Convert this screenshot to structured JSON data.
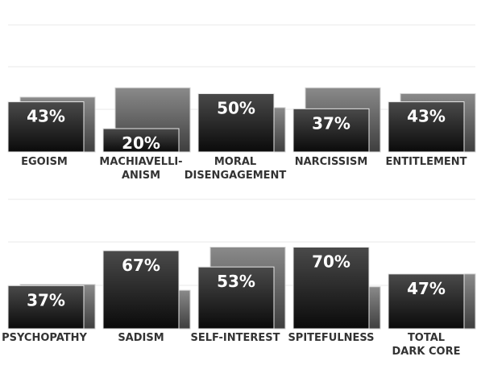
{
  "chart_data": {
    "type": "bar",
    "grid": true,
    "legend": "none",
    "colors": {
      "front_top": "#4a4a4a",
      "front_bottom": "#0a0a0a",
      "back_top": "#8a8a8a",
      "back_bottom": "#3e3e3e",
      "value_label": "#ffffff",
      "category_label": "#333333",
      "gridline": "#e8e8e8"
    },
    "panels": [
      {
        "categories": [
          [
            "EGOISM"
          ],
          [
            "MACHIAVELLI-",
            "ANISM"
          ],
          [
            "MORAL",
            "DISENGAGEMENT"
          ],
          [
            "NARCISSISM"
          ],
          [
            "ENTITLEMENT"
          ]
        ],
        "value_labels": [
          "43%",
          "20%",
          "50%",
          "37%",
          "43%"
        ],
        "values": [
          43,
          20,
          50,
          37,
          43
        ],
        "background_values": [
          47,
          55,
          38,
          55,
          50
        ]
      },
      {
        "categories": [
          [
            "PSYCHOPATHY"
          ],
          [
            "SADISM"
          ],
          [
            "SELF-INTEREST"
          ],
          [
            "SPITEFULNESS"
          ],
          [
            "TOTAL",
            "DARK CORE"
          ]
        ],
        "value_labels": [
          "37%",
          "67%",
          "53%",
          "70%",
          "47%"
        ],
        "values": [
          37,
          67,
          53,
          70,
          47
        ],
        "background_values": [
          38,
          33,
          70,
          36,
          47
        ]
      }
    ]
  }
}
